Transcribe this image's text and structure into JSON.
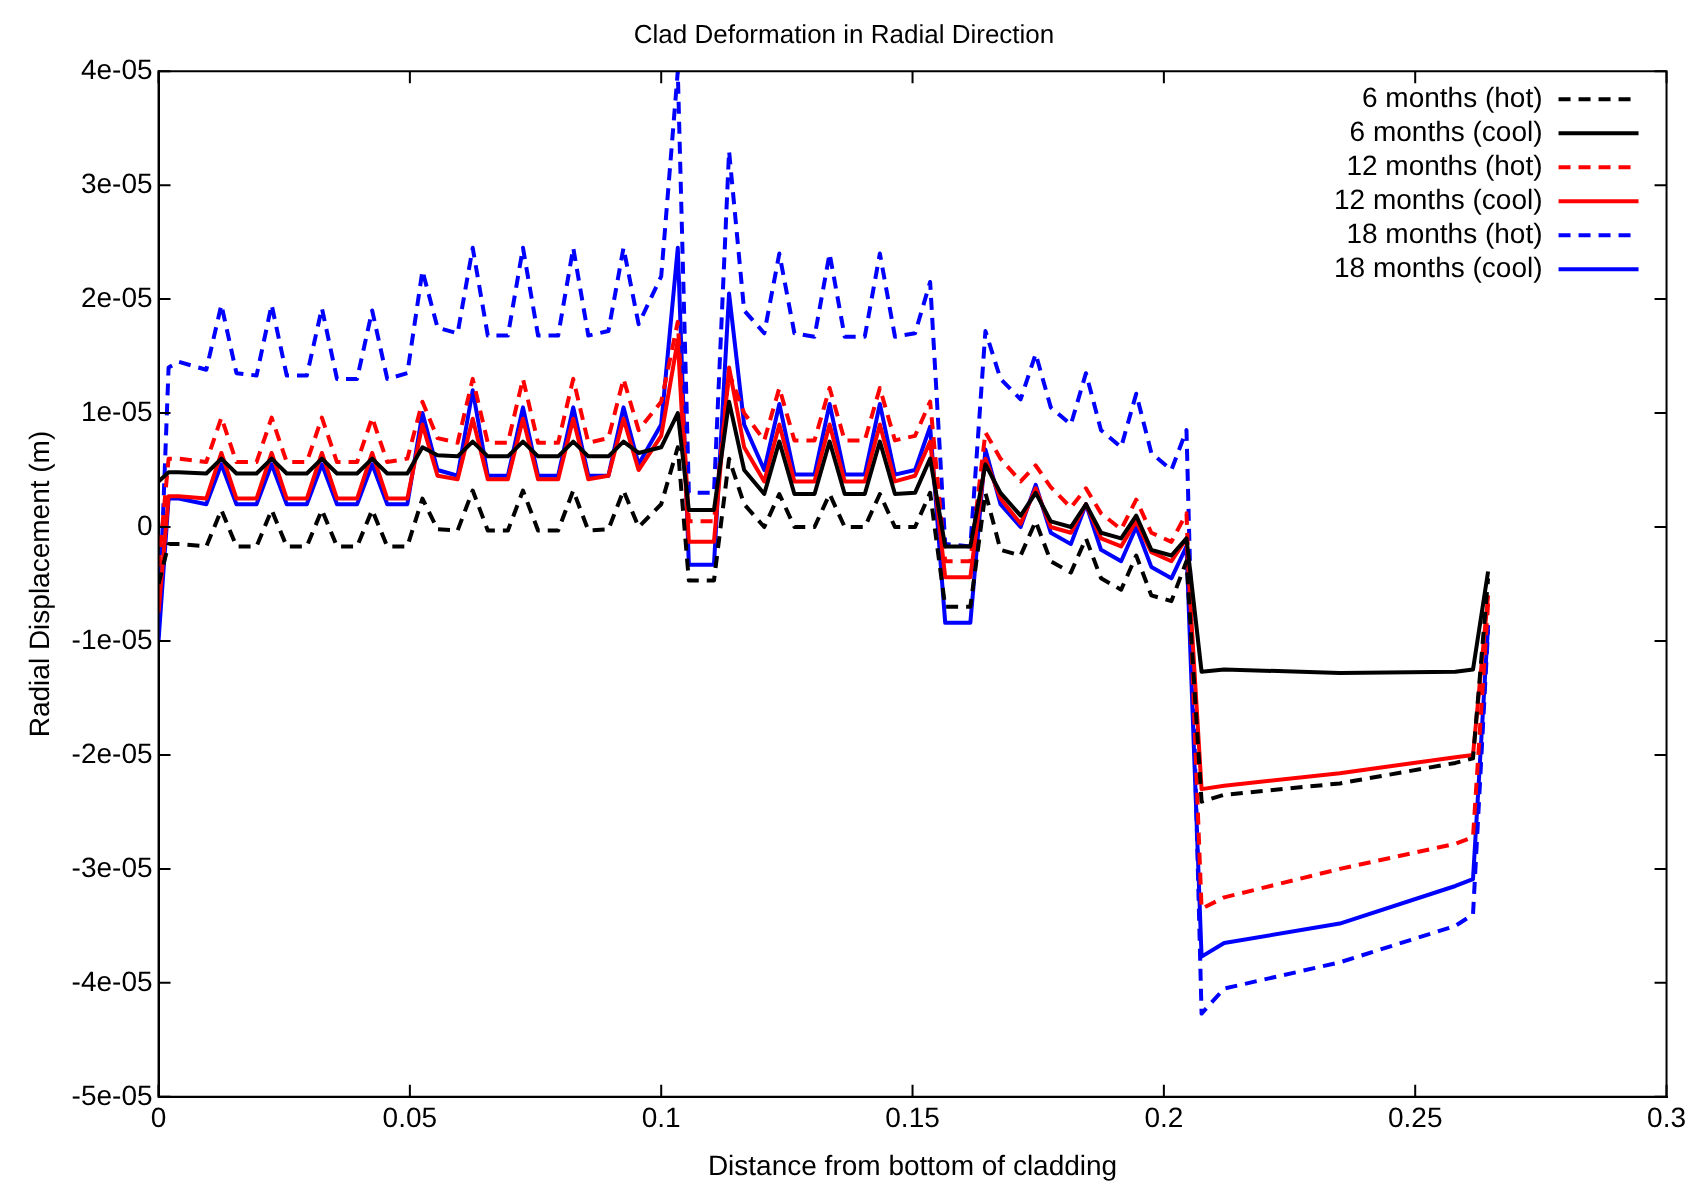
{
  "chart_data": {
    "type": "line",
    "title": "Clad Deformation in Radial Direction",
    "xlabel": "Distance from bottom of cladding",
    "ylabel": "Radial Displacement (m)",
    "x": [
      0,
      0.002,
      0.004,
      0.0095,
      0.0125,
      0.0155,
      0.0195,
      0.0225,
      0.0255,
      0.0295,
      0.0325,
      0.0355,
      0.0395,
      0.0425,
      0.0455,
      0.0495,
      0.0525,
      0.0555,
      0.0595,
      0.0625,
      0.0655,
      0.0695,
      0.0725,
      0.0755,
      0.0795,
      0.0825,
      0.0855,
      0.0895,
      0.0925,
      0.0955,
      0.1,
      0.1033,
      0.1055,
      0.1105,
      0.1135,
      0.1165,
      0.1205,
      0.1235,
      0.1265,
      0.1305,
      0.1335,
      0.1365,
      0.1405,
      0.1435,
      0.1465,
      0.1505,
      0.1535,
      0.1565,
      0.1615,
      0.1645,
      0.1675,
      0.1715,
      0.1745,
      0.1775,
      0.1815,
      0.1845,
      0.1875,
      0.1915,
      0.1945,
      0.1975,
      0.2015,
      0.2045,
      0.2075,
      0.212,
      0.235,
      0.258,
      0.2615,
      0.2645
    ],
    "series": [
      {
        "name": "6 months (hot)",
        "color": "#000000",
        "line_style": "dashed",
        "values": [
          -5e-06,
          -1.5e-06,
          -1.5e-06,
          -1.7e-06,
          1.5e-06,
          -1.7e-06,
          -1.7e-06,
          1.5e-06,
          -1.7e-06,
          -1.7e-06,
          1.5e-06,
          -1.7e-06,
          -1.7e-06,
          1.5e-06,
          -1.7e-06,
          -1.7e-06,
          2.5e-06,
          -2e-07,
          -3e-07,
          3.2e-06,
          -3e-07,
          -3e-07,
          3.2e-06,
          -3e-07,
          -3e-07,
          3.2e-06,
          -3e-07,
          -2e-07,
          3.2e-06,
          0.0,
          2e-06,
          7e-06,
          -4.7e-06,
          -4.7e-06,
          6e-06,
          2e-06,
          0.0,
          2.9e-06,
          0.0,
          0.0,
          2.9e-06,
          0.0,
          0.0,
          2.9e-06,
          0.0,
          0.0,
          3e-06,
          -7e-06,
          -7e-06,
          3e-06,
          -2e-06,
          -2.5e-06,
          5e-07,
          -3e-06,
          -4e-06,
          -1e-06,
          -4.5e-06,
          -5.5e-06,
          -2.5e-06,
          -6e-06,
          -6.5e-06,
          -3e-06,
          -2.41e-05,
          -2.35e-05,
          -2.25e-05,
          -2.07e-05,
          -2.03e-05,
          -4.5e-06
        ]
      },
      {
        "name": "6 months (cool)",
        "color": "#000000",
        "line_style": "solid",
        "values": [
          4e-06,
          4.8e-06,
          4.8e-06,
          4.7e-06,
          6e-06,
          4.7e-06,
          4.7e-06,
          6e-06,
          4.7e-06,
          4.7e-06,
          6e-06,
          4.7e-06,
          4.7e-06,
          6e-06,
          4.7e-06,
          4.7e-06,
          7e-06,
          6.3e-06,
          6.2e-06,
          7.5e-06,
          6.2e-06,
          6.2e-06,
          7.5e-06,
          6.2e-06,
          6.2e-06,
          7.5e-06,
          6.2e-06,
          6.2e-06,
          7.5e-06,
          6.5e-06,
          7e-06,
          1e-05,
          1.5e-06,
          1.5e-06,
          1.1e-05,
          5e-06,
          2.9e-06,
          7.5e-06,
          2.9e-06,
          2.9e-06,
          7.5e-06,
          2.9e-06,
          2.9e-06,
          7.5e-06,
          2.9e-06,
          3e-06,
          6e-06,
          -1.7e-06,
          -1.7e-06,
          5.5e-06,
          3e-06,
          1e-06,
          3e-06,
          5e-07,
          0.0,
          2e-06,
          -5e-07,
          -1e-06,
          1e-06,
          -2e-06,
          -2.5e-06,
          -1e-06,
          -1.27e-05,
          -1.25e-05,
          -1.28e-05,
          -1.27e-05,
          -1.25e-05,
          -3.9e-06
        ]
      },
      {
        "name": "12 months (hot)",
        "color": "#ff0000",
        "line_style": "dashed",
        "values": [
          -3.5e-06,
          6e-06,
          6e-06,
          5.7e-06,
          9.6e-06,
          5.7e-06,
          5.7e-06,
          9.6e-06,
          5.7e-06,
          5.7e-06,
          9.6e-06,
          5.7e-06,
          5.7e-06,
          9.6e-06,
          5.7e-06,
          6e-06,
          1.1e-05,
          7.8e-06,
          7.4e-06,
          1.3e-05,
          7.4e-06,
          7.4e-06,
          1.3e-05,
          7.4e-06,
          7.4e-06,
          1.3e-05,
          7.4e-06,
          7.8e-06,
          1.3e-05,
          8.5e-06,
          1.1e-05,
          1.8e-05,
          5e-07,
          5e-07,
          1.35e-05,
          1e-05,
          7.6e-06,
          1.22e-05,
          7.6e-06,
          7.6e-06,
          1.22e-05,
          7.6e-06,
          7.6e-06,
          1.22e-05,
          7.6e-06,
          8e-06,
          1.1e-05,
          -3e-06,
          -3e-06,
          8.3e-06,
          6e-06,
          4e-06,
          5.4e-06,
          3.5e-06,
          1.7e-06,
          3.4e-06,
          1.2e-06,
          -2e-07,
          2.4e-06,
          -5e-07,
          -1.3e-06,
          1.2e-06,
          -3.35e-05,
          -3.25e-05,
          -3e-05,
          -2.78e-05,
          -2.72e-05,
          -6.7e-06
        ]
      },
      {
        "name": "12 months (cool)",
        "color": "#ff0000",
        "line_style": "solid",
        "values": [
          -7.5e-06,
          2.7e-06,
          2.7e-06,
          2.5e-06,
          6.5e-06,
          2.5e-06,
          2.5e-06,
          6.5e-06,
          2.5e-06,
          2.5e-06,
          6.5e-06,
          2.5e-06,
          2.5e-06,
          6.5e-06,
          2.5e-06,
          2.5e-06,
          9e-06,
          4.5e-06,
          4.2e-06,
          9.5e-06,
          4.2e-06,
          4.2e-06,
          9.5e-06,
          4.2e-06,
          4.2e-06,
          9.5e-06,
          4.2e-06,
          4.5e-06,
          9.5e-06,
          5e-06,
          8e-06,
          1.64e-05,
          -1.3e-06,
          -1.3e-06,
          1.4e-05,
          7e-06,
          4e-06,
          9e-06,
          4e-06,
          4e-06,
          9e-06,
          4e-06,
          4e-06,
          9e-06,
          4e-06,
          4.5e-06,
          7.5e-06,
          -4.4e-06,
          -4.4e-06,
          6e-06,
          2.5e-06,
          3e-07,
          3.4e-06,
          0.0,
          -5e-07,
          2e-06,
          -1e-06,
          -1.7e-06,
          5e-07,
          -2.2e-06,
          -3e-06,
          -1e-06,
          -2.3e-05,
          -2.27e-05,
          -2.16e-05,
          -2.02e-05,
          -2e-05,
          -6e-06
        ]
      },
      {
        "name": "18 months (hot)",
        "color": "#0000ff",
        "line_style": "dashed",
        "values": [
          -9.5e-06,
          1.4e-05,
          1.45e-05,
          1.38e-05,
          1.95e-05,
          1.35e-05,
          1.33e-05,
          1.95e-05,
          1.33e-05,
          1.33e-05,
          1.92e-05,
          1.3e-05,
          1.3e-05,
          1.9e-05,
          1.3e-05,
          1.35e-05,
          2.25e-05,
          1.75e-05,
          1.7e-05,
          2.45e-05,
          1.68e-05,
          1.68e-05,
          2.45e-05,
          1.68e-05,
          1.68e-05,
          2.45e-05,
          1.68e-05,
          1.72e-05,
          2.45e-05,
          1.78e-05,
          2.2e-05,
          4e-05,
          3e-06,
          3e-06,
          3.3e-05,
          1.9e-05,
          1.7e-05,
          2.4e-05,
          1.7e-05,
          1.67e-05,
          2.4e-05,
          1.67e-05,
          1.67e-05,
          2.4e-05,
          1.67e-05,
          1.7e-05,
          2.15e-05,
          -1.5e-06,
          -1.7e-06,
          1.72e-05,
          1.3e-05,
          1.12e-05,
          1.52e-05,
          1.05e-05,
          9e-06,
          1.35e-05,
          8.5e-06,
          7e-06,
          1.17e-05,
          6.5e-06,
          5e-06,
          8.5e-06,
          -4.27e-05,
          -4.05e-05,
          -3.82e-05,
          -3.5e-05,
          -3.4e-05,
          -9e-06
        ]
      },
      {
        "name": "18 months (cool)",
        "color": "#0000ff",
        "line_style": "solid",
        "values": [
          -1e-05,
          2.5e-06,
          2.5e-06,
          2e-06,
          5.5e-06,
          2e-06,
          2e-06,
          5.5e-06,
          2e-06,
          2e-06,
          5.5e-06,
          2e-06,
          2e-06,
          5.5e-06,
          2e-06,
          2e-06,
          1e-05,
          5e-06,
          4.5e-06,
          1.2e-05,
          4.5e-06,
          4.5e-06,
          1.05e-05,
          4.5e-06,
          4.5e-06,
          1.05e-05,
          4.5e-06,
          4.5e-06,
          1.05e-05,
          5.5e-06,
          9e-06,
          2.45e-05,
          -3.3e-06,
          -3.3e-06,
          2.05e-05,
          9e-06,
          5e-06,
          1.08e-05,
          4.6e-06,
          4.6e-06,
          1.08e-05,
          4.6e-06,
          4.6e-06,
          1.08e-05,
          4.6e-06,
          5e-06,
          8.8e-06,
          -8.4e-06,
          -8.4e-06,
          6.8e-06,
          2e-06,
          0.0,
          3.7e-06,
          -5e-07,
          -1.5e-06,
          2e-06,
          -2e-06,
          -3e-06,
          0.0,
          -3.5e-06,
          -4.5e-06,
          -1.7e-06,
          -3.77e-05,
          -3.65e-05,
          -3.48e-05,
          -3.15e-05,
          -3.09e-05,
          -8.6e-06
        ]
      }
    ],
    "xlim": [
      0,
      0.3
    ],
    "xticks": [
      0,
      0.05,
      0.1,
      0.15,
      0.2,
      0.25,
      0.3
    ],
    "ylim": [
      -5e-05,
      4e-05
    ],
    "yticks": [
      {
        "value": -5e-05,
        "label": "-5e-05"
      },
      {
        "value": -4e-05,
        "label": "-4e-05"
      },
      {
        "value": -3e-05,
        "label": "-3e-05"
      },
      {
        "value": -2e-05,
        "label": "-2e-05"
      },
      {
        "value": -1e-05,
        "label": "-1e-05"
      },
      0,
      {
        "value": 1e-05,
        "label": "1e-05"
      },
      {
        "value": 2e-05,
        "label": "2e-05"
      },
      {
        "value": 3e-05,
        "label": "3e-05"
      },
      {
        "value": 4e-05,
        "label": "4e-05"
      }
    ],
    "grid": false,
    "legend": "top right",
    "marker": "none"
  }
}
